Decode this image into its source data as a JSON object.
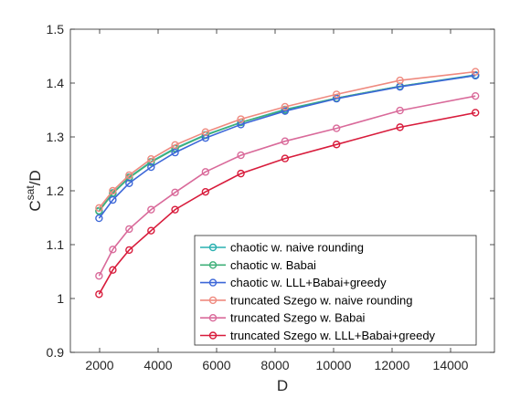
{
  "chart_data": {
    "type": "line",
    "xlabel": "D",
    "ylabel": "C",
    "ylabel_sup": "sat",
    "ylabel_tail": "/D",
    "xlim": [
      1000,
      15500
    ],
    "ylim": [
      0.9,
      1.5
    ],
    "xticks": [
      2000,
      4000,
      6000,
      8000,
      10000,
      12000,
      14000
    ],
    "yticks": [
      0.9,
      1,
      1.1,
      1.2,
      1.3,
      1.4,
      1.5
    ],
    "xtick_labels": [
      "2000",
      "4000",
      "6000",
      "8000",
      "10000",
      "12000",
      "14000"
    ],
    "ytick_labels": [
      "0.9",
      "1",
      "1.1",
      "1.2",
      "1.3",
      "1.4",
      "1.5"
    ],
    "grid": false,
    "legend_position": "bottom-right",
    "x": [
      1980,
      2450,
      3010,
      3760,
      4580,
      5620,
      6830,
      8340,
      10100,
      12270,
      14850
    ],
    "series": [
      {
        "name": "chaotic w. naive rounding",
        "color": "#2ab0b0",
        "values": [
          1.163,
          1.196,
          1.225,
          1.254,
          1.279,
          1.304,
          1.327,
          1.351,
          1.372,
          1.394,
          1.415
        ]
      },
      {
        "name": "chaotic w. Babai",
        "color": "#3fb079",
        "values": [
          1.162,
          1.195,
          1.224,
          1.253,
          1.278,
          1.303,
          1.327,
          1.35,
          1.372,
          1.394,
          1.414
        ]
      },
      {
        "name": "chaotic w. LLL+Babai+greedy",
        "color": "#3c67d8",
        "values": [
          1.149,
          1.183,
          1.214,
          1.244,
          1.271,
          1.298,
          1.323,
          1.348,
          1.371,
          1.393,
          1.414
        ]
      },
      {
        "name": "truncated Szego w. naive rounding",
        "color": "#ef8a7f",
        "values": [
          1.168,
          1.2,
          1.229,
          1.259,
          1.285,
          1.309,
          1.333,
          1.356,
          1.379,
          1.405,
          1.421
        ]
      },
      {
        "name": "truncated Szego w. Babai",
        "color": "#d96a9a",
        "values": [
          1.042,
          1.091,
          1.129,
          1.165,
          1.197,
          1.235,
          1.266,
          1.292,
          1.316,
          1.349,
          1.376
        ]
      },
      {
        "name": "truncated Szego w. LLL+Babai+greedy",
        "color": "#d81c3c",
        "values": [
          1.008,
          1.053,
          1.09,
          1.126,
          1.165,
          1.198,
          1.232,
          1.26,
          1.286,
          1.318,
          1.345
        ]
      }
    ]
  }
}
